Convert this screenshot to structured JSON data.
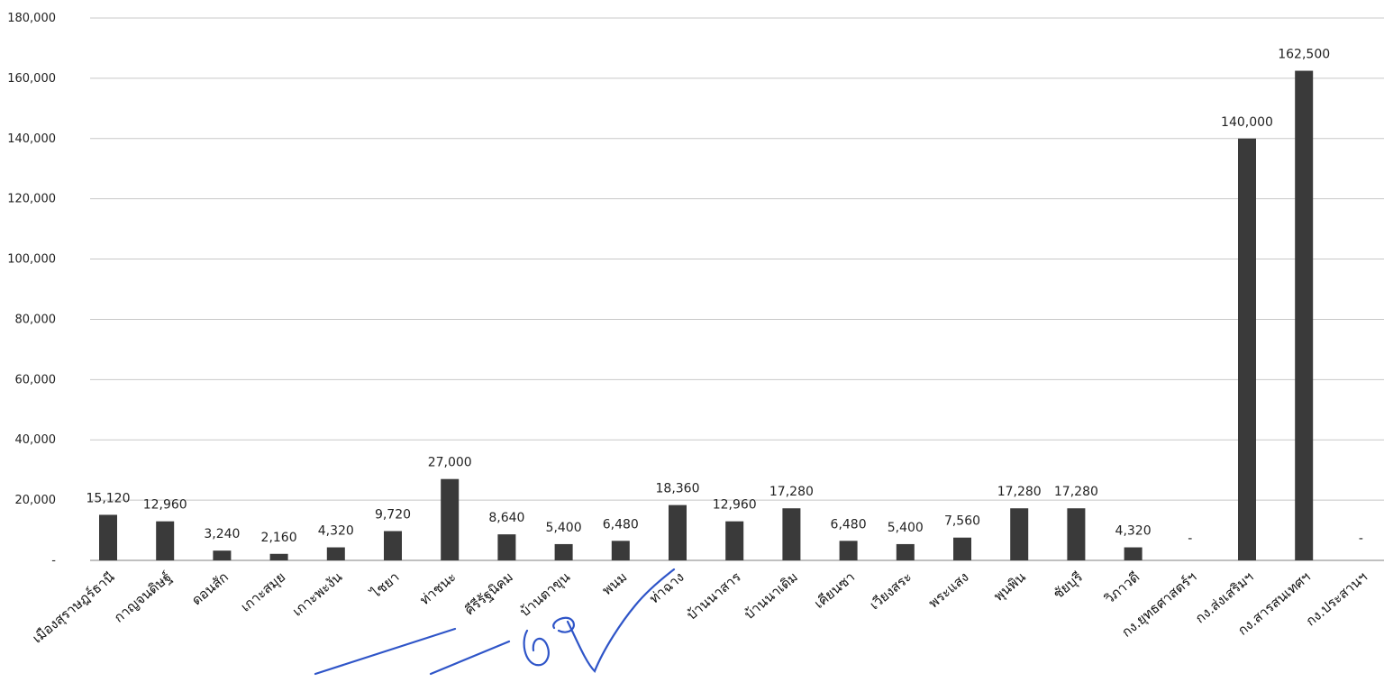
{
  "chart_data": {
    "type": "bar",
    "title": "",
    "xlabel": "",
    "ylabel": "",
    "ylim": [
      0,
      180000
    ],
    "yticks": [
      {
        "value": 0,
        "label": "-"
      },
      {
        "value": 20000,
        "label": "20,000"
      },
      {
        "value": 40000,
        "label": "40,000"
      },
      {
        "value": 60000,
        "label": "60,000"
      },
      {
        "value": 80000,
        "label": "80,000"
      },
      {
        "value": 100000,
        "label": "100,000"
      },
      {
        "value": 120000,
        "label": "120,000"
      },
      {
        "value": 140000,
        "label": "140,000"
      },
      {
        "value": 160000,
        "label": "160,000"
      },
      {
        "value": 180000,
        "label": "180,000"
      }
    ],
    "grid": true,
    "bar_color": "#3a3a3a",
    "categories": [
      "เมืองสุราษฎร์ธานี",
      "กาญจนดิษฐ์",
      "ดอนสัก",
      "เกาะสมุย",
      "เกาะพะงัน",
      "ไชยา",
      "ท่าชนะ",
      "คีรีรัฐนิคม",
      "บ้านตาขุน",
      "พนม",
      "ท่าฉาง",
      "บ้านนาสาร",
      "บ้านนาเดิม",
      "เคียนซา",
      "เวียงสระ",
      "พระแสง",
      "พุนพิน",
      "ชัยบุรี",
      "วิภาวดี",
      "กง.ยุทธศาสตร์ฯ",
      "กง.ส่งเสริมฯ",
      "กง.สารสนเทศฯ",
      "กง.ประสานฯ"
    ],
    "values": [
      15120,
      12960,
      3240,
      2160,
      4320,
      9720,
      27000,
      8640,
      5400,
      6480,
      18360,
      12960,
      17280,
      6480,
      5400,
      7560,
      17280,
      17280,
      4320,
      0,
      140000,
      162500,
      0
    ],
    "data_labels": [
      "15,120",
      "12,960",
      "3,240",
      "2,160",
      "4,320",
      "9,720",
      "27,000",
      "8,640",
      "5,400",
      "6,480",
      "18,360",
      "12,960",
      "17,280",
      "6,480",
      "5,400",
      "7,560",
      "17,280",
      "17,280",
      "4,320",
      "-",
      "140,000",
      "162,500",
      "-"
    ]
  },
  "annotation": {
    "color": "#2f55c8"
  }
}
